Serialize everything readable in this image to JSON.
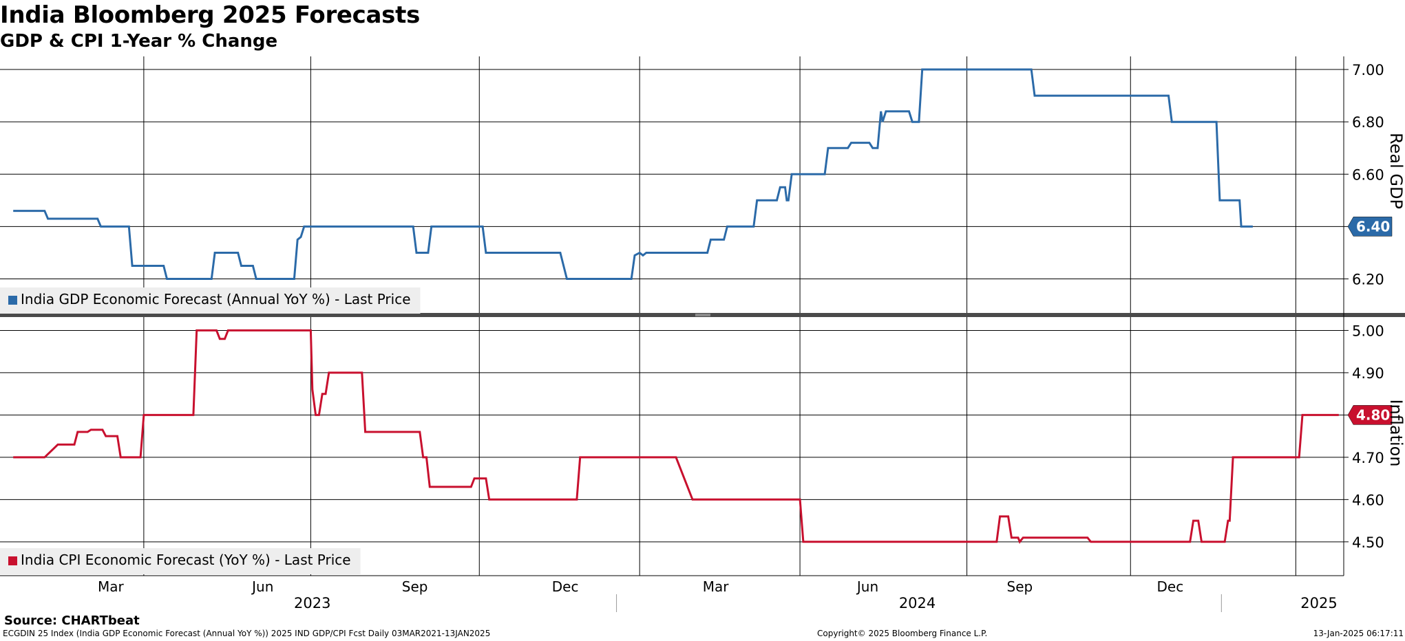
{
  "title": "India Bloomberg 2025 Forecasts",
  "subtitle": "GDP & CPI 1-Year % Change",
  "source": "Source: CHARTbeat",
  "footer": {
    "left": "ECGDIN 25 Index (India GDP Economic Forecast (Annual YoY %)) 2025 IND GDP/CPI Fcst  Daily 03MAR2021-13JAN2025",
    "center": "Copyright© 2025 Bloomberg Finance L.P.",
    "right": "13-Jan-2025 06:17:11"
  },
  "colors": {
    "gdp": "#2b6aa8",
    "cpi": "#c8102e",
    "grid": "#000000",
    "divider": "#4a4a4a",
    "legend_bg": "#eeeeee"
  },
  "chart_data": [
    {
      "type": "line",
      "ylabel": "Real GDP",
      "ylim": [
        6.07,
        7.05
      ],
      "yticks": [
        "6.20",
        "6.40",
        "6.60",
        "6.80",
        "7.00"
      ],
      "legend": "India GDP Economic Forecast (Annual YoY %) - Last Price",
      "last_value": "6.40",
      "series": [
        {
          "name": "India GDP Economic Forecast (Annual YoY %) - Last Price",
          "points": [
            [
              "2023-01-01",
              6.46
            ],
            [
              "2023-01-20",
              6.46
            ],
            [
              "2023-01-22",
              6.43
            ],
            [
              "2023-01-29",
              6.43
            ],
            [
              "2023-01-31",
              6.43
            ],
            [
              "2023-02-21",
              6.43
            ],
            [
              "2023-02-23",
              6.4
            ],
            [
              "2023-03-12",
              6.4
            ],
            [
              "2023-03-14",
              6.25
            ],
            [
              "2023-04-02",
              6.25
            ],
            [
              "2023-04-04",
              6.2
            ],
            [
              "2023-05-01",
              6.2
            ],
            [
              "2023-05-03",
              6.3
            ],
            [
              "2023-05-17",
              6.3
            ],
            [
              "2023-05-19",
              6.25
            ],
            [
              "2023-05-26",
              6.25
            ],
            [
              "2023-05-28",
              6.2
            ],
            [
              "2023-06-20",
              6.2
            ],
            [
              "2023-06-22",
              6.35
            ],
            [
              "2023-06-24",
              6.36
            ],
            [
              "2023-06-26",
              6.4
            ],
            [
              "2023-08-31",
              6.4
            ],
            [
              "2023-09-02",
              6.3
            ],
            [
              "2023-09-09",
              6.3
            ],
            [
              "2023-09-11",
              6.4
            ],
            [
              "2023-10-12",
              6.4
            ],
            [
              "2023-10-14",
              6.3
            ],
            [
              "2023-11-28",
              6.3
            ],
            [
              "2023-12-02",
              6.2
            ],
            [
              "2024-01-10",
              6.2
            ],
            [
              "2024-01-12",
              6.29
            ],
            [
              "2024-01-15",
              6.3
            ],
            [
              "2024-01-17",
              6.29
            ],
            [
              "2024-01-19",
              6.3
            ],
            [
              "2024-02-25",
              6.3
            ],
            [
              "2024-02-27",
              6.35
            ],
            [
              "2024-03-06",
              6.35
            ],
            [
              "2024-03-08",
              6.4
            ],
            [
              "2024-03-24",
              6.4
            ],
            [
              "2024-03-26",
              6.5
            ],
            [
              "2024-04-07",
              6.5
            ],
            [
              "2024-04-09",
              6.55
            ],
            [
              "2024-04-12",
              6.55
            ],
            [
              "2024-04-13",
              6.5
            ],
            [
              "2024-04-14",
              6.5
            ],
            [
              "2024-04-16",
              6.6
            ],
            [
              "2024-05-06",
              6.6
            ],
            [
              "2024-05-08",
              6.7
            ],
            [
              "2024-05-20",
              6.7
            ],
            [
              "2024-05-22",
              6.72
            ],
            [
              "2024-06-02",
              6.72
            ],
            [
              "2024-06-04",
              6.7
            ],
            [
              "2024-06-07",
              6.7
            ],
            [
              "2024-06-09",
              6.84
            ],
            [
              "2024-06-10",
              6.8
            ],
            [
              "2024-06-12",
              6.84
            ],
            [
              "2024-06-26",
              6.84
            ],
            [
              "2024-06-28",
              6.8
            ],
            [
              "2024-07-02",
              6.8
            ],
            [
              "2024-07-04",
              7.0
            ],
            [
              "2024-09-08",
              7.0
            ],
            [
              "2024-09-10",
              6.9
            ],
            [
              "2024-11-30",
              6.9
            ],
            [
              "2024-12-02",
              6.8
            ],
            [
              "2024-12-29",
              6.8
            ],
            [
              "2024-12-31",
              6.5
            ],
            [
              "2025-01-12",
              6.5
            ],
            [
              "2025-01-13",
              6.4
            ],
            [
              "2025-01-20",
              6.4
            ]
          ]
        }
      ]
    },
    {
      "type": "line",
      "ylabel": "Inflation",
      "ylim": [
        4.42,
        5.03
      ],
      "yticks": [
        "4.50",
        "4.60",
        "4.70",
        "4.80",
        "4.90",
        "5.00"
      ],
      "legend": "India CPI Economic Forecast (YoY %) - Last Price",
      "last_value": "4.80",
      "series": [
        {
          "name": "India CPI Economic Forecast (YoY %) - Last Price",
          "points": [
            [
              "2023-01-01",
              4.7
            ],
            [
              "2023-01-20",
              4.7
            ],
            [
              "2023-01-28",
              4.73
            ],
            [
              "2023-02-07",
              4.73
            ],
            [
              "2023-02-09",
              4.76
            ],
            [
              "2023-02-15",
              4.76
            ],
            [
              "2023-02-17",
              4.765
            ],
            [
              "2023-02-24",
              4.765
            ],
            [
              "2023-02-26",
              4.75
            ],
            [
              "2023-03-05",
              4.75
            ],
            [
              "2023-03-07",
              4.7
            ],
            [
              "2023-03-19",
              4.7
            ],
            [
              "2023-03-21",
              4.8
            ],
            [
              "2023-04-20",
              4.8
            ],
            [
              "2023-04-22",
              5.0
            ],
            [
              "2023-05-04",
              5.0
            ],
            [
              "2023-05-06",
              4.98
            ],
            [
              "2023-05-09",
              4.98
            ],
            [
              "2023-05-11",
              5.0
            ],
            [
              "2023-06-30",
              5.0
            ],
            [
              "2023-07-01",
              4.86
            ],
            [
              "2023-07-03",
              4.8
            ],
            [
              "2023-07-05",
              4.8
            ],
            [
              "2023-07-07",
              4.85
            ],
            [
              "2023-07-09",
              4.85
            ],
            [
              "2023-07-11",
              4.9
            ],
            [
              "2023-07-31",
              4.9
            ],
            [
              "2023-08-02",
              4.76
            ],
            [
              "2023-09-04",
              4.76
            ],
            [
              "2023-09-06",
              4.7
            ],
            [
              "2023-09-08",
              4.7
            ],
            [
              "2023-09-10",
              4.63
            ],
            [
              "2023-10-05",
              4.63
            ],
            [
              "2023-10-07",
              4.65
            ],
            [
              "2023-10-14",
              4.65
            ],
            [
              "2023-10-16",
              4.6
            ],
            [
              "2023-12-08",
              4.6
            ],
            [
              "2023-12-10",
              4.7
            ],
            [
              "2024-02-06",
              4.7
            ],
            [
              "2024-02-16",
              4.6
            ],
            [
              "2024-04-21",
              4.6
            ],
            [
              "2024-04-23",
              4.5
            ],
            [
              "2024-08-18",
              4.5
            ],
            [
              "2024-08-20",
              4.56
            ],
            [
              "2024-08-25",
              4.56
            ],
            [
              "2024-08-27",
              4.51
            ],
            [
              "2024-08-31",
              4.51
            ],
            [
              "2024-09-01",
              4.5
            ],
            [
              "2024-09-03",
              4.51
            ],
            [
              "2024-10-12",
              4.51
            ],
            [
              "2024-10-14",
              4.5
            ],
            [
              "2024-12-13",
              4.5
            ],
            [
              "2024-12-15",
              4.55
            ],
            [
              "2024-12-18",
              4.55
            ],
            [
              "2024-12-20",
              4.5
            ],
            [
              "2025-01-03",
              4.5
            ],
            [
              "2025-01-05",
              4.55
            ],
            [
              "2025-01-06",
              4.55
            ],
            [
              "2025-01-08",
              4.7
            ],
            [
              "2025-02-17",
              4.7
            ],
            [
              "2025-02-19",
              4.8
            ],
            [
              "2025-03-13",
              4.8
            ]
          ]
        }
      ]
    }
  ],
  "x_axis": {
    "range": [
      "2022-12-24",
      "2025-03-16"
    ],
    "month_labels": [
      {
        "label": "Mar",
        "date": "2023-03-01"
      },
      {
        "label": "Jun",
        "date": "2023-06-01"
      },
      {
        "label": "Sep",
        "date": "2023-09-01"
      },
      {
        "label": "Dec",
        "date": "2023-12-01"
      },
      {
        "label": "Mar",
        "date": "2024-03-01"
      },
      {
        "label": "Jun",
        "date": "2024-06-01"
      },
      {
        "label": "Sep",
        "date": "2024-09-01"
      },
      {
        "label": "Dec",
        "date": "2024-12-01"
      }
    ],
    "gridlines": [
      "2023-03-21",
      "2023-06-30",
      "2023-10-10",
      "2024-01-15",
      "2024-04-21",
      "2024-07-31",
      "2024-11-07",
      "2025-02-15"
    ],
    "year_labels": [
      {
        "label": "2023",
        "date": "2023-07-01"
      },
      {
        "label": "2024",
        "date": "2024-07-01"
      },
      {
        "label": "2025",
        "date": "2025-03-01"
      }
    ]
  }
}
